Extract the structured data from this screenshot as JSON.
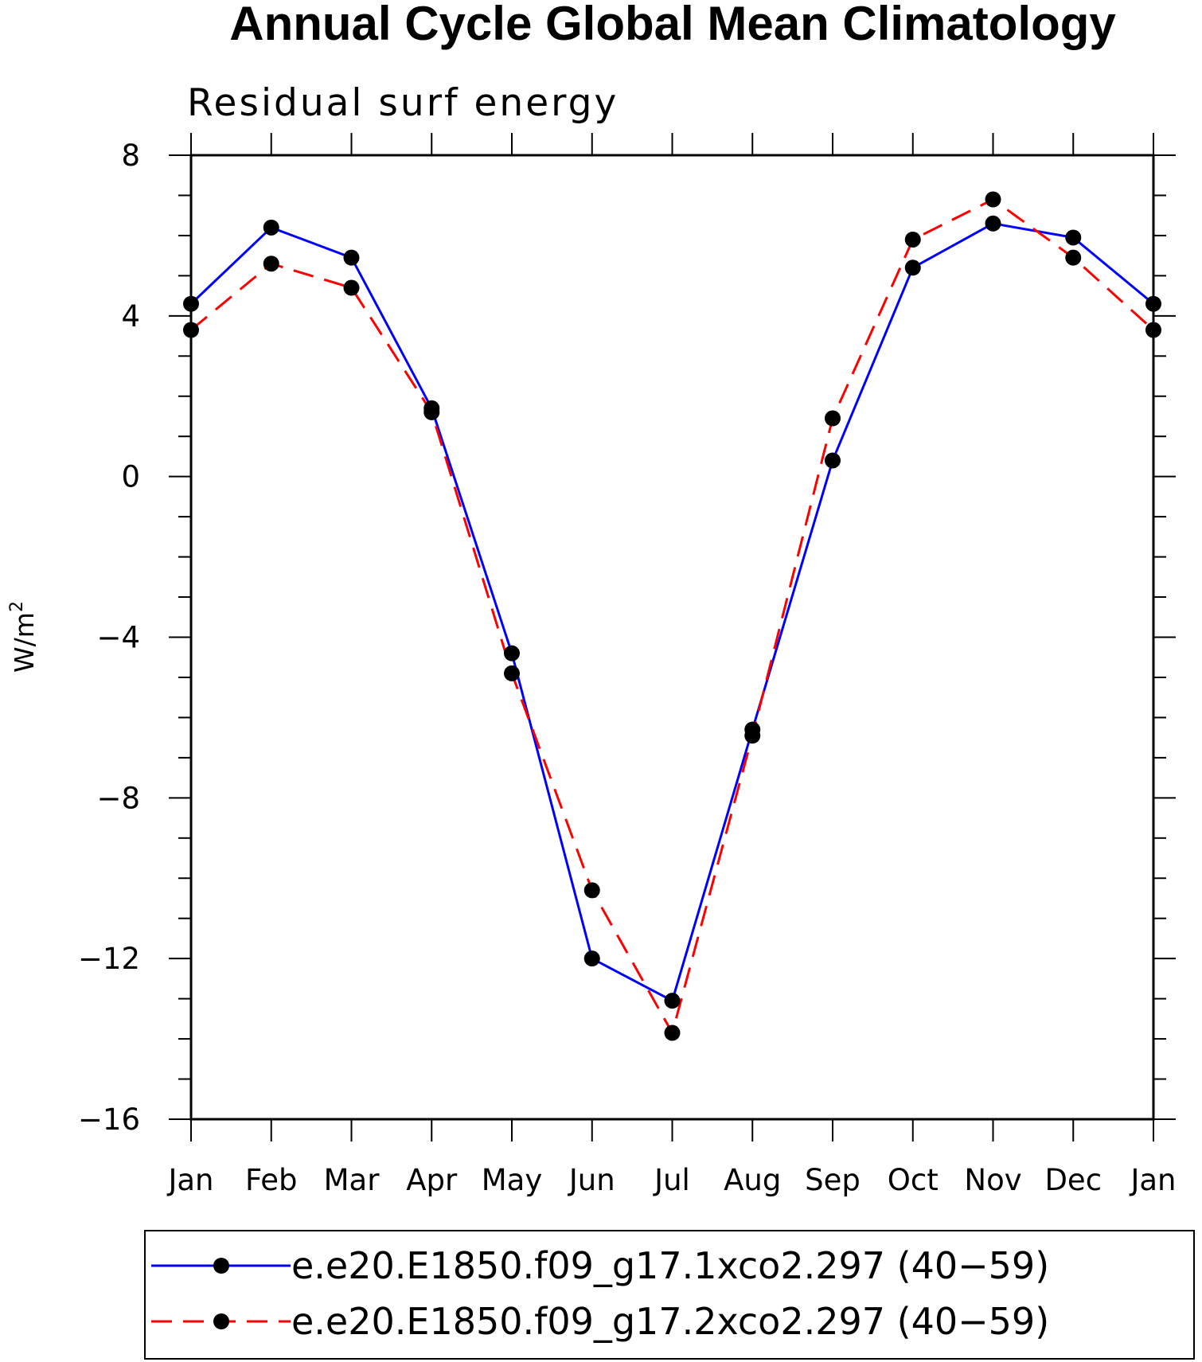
{
  "chart_data": {
    "type": "line",
    "title": "Annual Cycle Global Mean Climatology",
    "subtitle": "Residual surf energy",
    "ylabel": "W/m",
    "ylabel_sup": "2",
    "xlabel": "",
    "categories": [
      "Jan",
      "Feb",
      "Mar",
      "Apr",
      "May",
      "Jun",
      "Jul",
      "Aug",
      "Sep",
      "Oct",
      "Nov",
      "Dec",
      "Jan"
    ],
    "ylim": [
      -16,
      8
    ],
    "yticks": [
      8,
      4,
      0,
      -4,
      -8,
      -12,
      -16
    ],
    "ytick_labels": [
      "8",
      "4",
      "0",
      "−4",
      "−8",
      "−12",
      "−16"
    ],
    "grid": false,
    "legend_position": "bottom",
    "series": [
      {
        "name": "e.e20.E1850.f09_g17.1xco2.297 (40−59)",
        "color": "#0000ff",
        "dash": "solid",
        "marker": "filled-circle",
        "values": [
          4.3,
          6.2,
          5.45,
          1.7,
          -4.4,
          -12.0,
          -13.05,
          -6.3,
          0.4,
          5.2,
          6.3,
          5.95,
          4.3
        ]
      },
      {
        "name": "e.e20.E1850.f09_g17.2xco2.297 (40−59)",
        "color": "#ff0000",
        "dash": "dashed",
        "marker": "filled-circle",
        "values": [
          3.65,
          5.3,
          4.7,
          1.6,
          -4.9,
          -10.3,
          -13.85,
          -6.45,
          1.45,
          5.9,
          6.9,
          5.45,
          3.65
        ]
      }
    ]
  }
}
